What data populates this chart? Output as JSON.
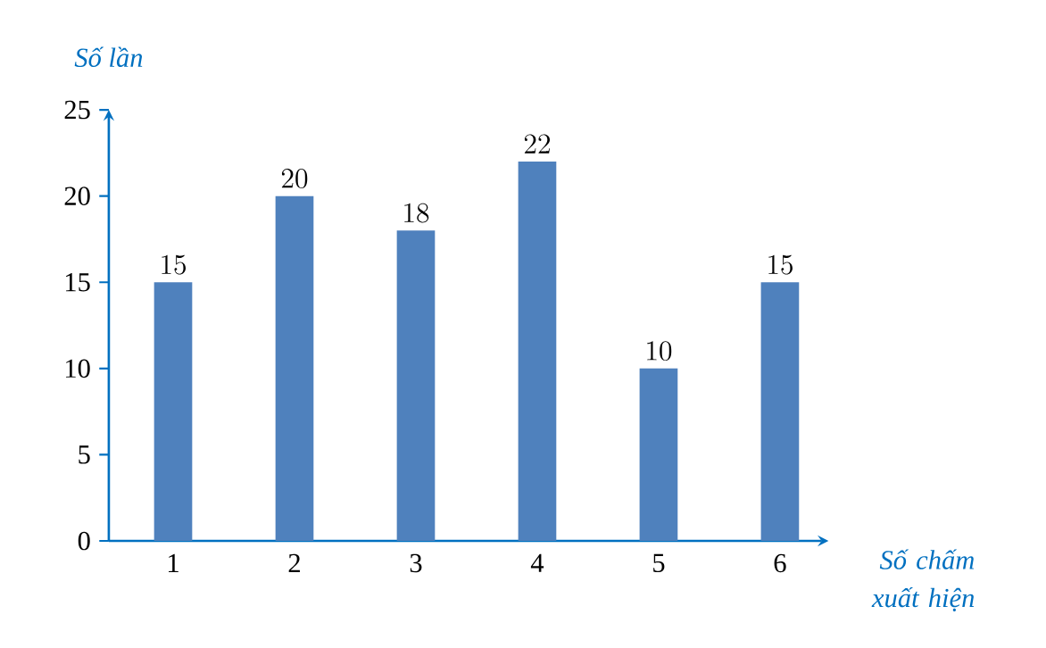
{
  "chart_data": {
    "type": "bar",
    "xlabel": "Số chấm xuất hiện",
    "ylabel": "Số lần",
    "categories": [
      "1",
      "2",
      "3",
      "4",
      "5",
      "6"
    ],
    "values": [
      15,
      20,
      18,
      22,
      10,
      15
    ],
    "color": "#4f81bd",
    "ylim": [
      0,
      25
    ],
    "yticks": [
      0,
      5,
      10,
      15,
      20,
      25
    ],
    "data_labels": true
  }
}
